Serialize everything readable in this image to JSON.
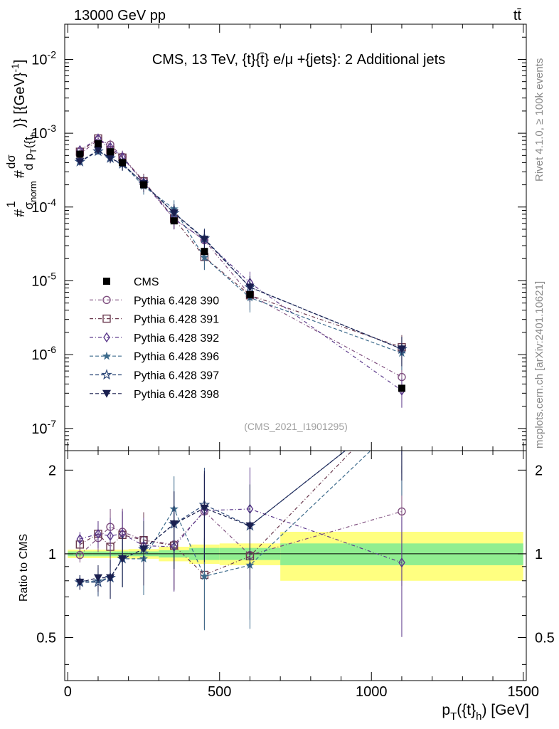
{
  "header": {
    "beam_label": "13000 GeV pp",
    "process_label": "tt̄"
  },
  "side_labels": {
    "rivet": "Rivet 4.1.0, ≥ 100k events",
    "mcplots": "mcplots.cern.ch [arXiv:2401.10621]"
  },
  "chart_data": {
    "type": "line",
    "title": "CMS, 13 TeV, {t}{t̄} e/μ +{jets}: 2 Additional jets",
    "analysis_tag": "(CMS_2021_I1901295)",
    "xlabel_main": "p",
    "xlabel_sub": "T",
    "xlabel_rest": "({t}",
    "xlabel_sub2": "h",
    "xlabel_end": ") [GeV]",
    "ylabel": "#1/σnorm #dσ/dpT({t}h)} [{GeV}-1]",
    "ylabel_parts": {
      "hash1": "#",
      "one": "1",
      "sigma": "σ",
      "norm": "norm",
      "hash2": "#",
      "dsig": "dσ",
      "dp": "d p",
      "dpsub": "T",
      "paren": "({t",
      "hsub": "h",
      "close": ")} [{GeV}",
      "exp": "-1",
      "end": "]"
    },
    "ratio_ylabel": "Ratio to CMS",
    "xlim": [
      -10,
      1510
    ],
    "ylim": [
      5e-08,
      0.03
    ],
    "ratio_ylim": [
      0.35,
      2.35
    ],
    "x_ticks": [
      0,
      500,
      1000,
      1500
    ],
    "x_tick_labels": [
      "0",
      "500",
      "1000",
      "1500"
    ],
    "y_ticks": [
      1e-07,
      1e-06,
      1e-05,
      0.0001,
      0.001,
      0.01
    ],
    "y_tick_labels": [
      {
        "base": "10",
        "exp": "-7"
      },
      {
        "base": "10",
        "exp": "-6"
      },
      {
        "base": "10",
        "exp": "-5"
      },
      {
        "base": "10",
        "exp": "-4"
      },
      {
        "base": "10",
        "exp": "-3"
      },
      {
        "base": "10",
        "exp": "-2"
      }
    ],
    "ratio_ticks": [
      0.5,
      1,
      2
    ],
    "ratio_tick_labels": [
      "0.5",
      "1",
      "2"
    ],
    "bin_edges": [
      0,
      80,
      120,
      160,
      200,
      300,
      400,
      500,
      700,
      1500
    ],
    "x": [
      40,
      100,
      140,
      180,
      250,
      350,
      450,
      600,
      1100
    ],
    "data": {
      "name": "CMS",
      "values": [
        0.00052,
        0.00072,
        0.00056,
        0.0004,
        0.0002,
        6.5e-05,
        2.5e-05,
        6.5e-06,
        3.5e-07
      ],
      "stat_band": [
        0.02,
        0.02,
        0.02,
        0.02,
        0.02,
        0.03,
        0.05,
        0.05,
        0.09
      ],
      "total_band": [
        0.035,
        0.035,
        0.035,
        0.035,
        0.04,
        0.06,
        0.08,
        0.09,
        0.2
      ]
    },
    "series": [
      {
        "name": "Pythia 6.428 390",
        "marker": "open-circle",
        "color": "#7f4f7f",
        "dash": "5,3,1,3",
        "ratio": [
          0.99,
          1.14,
          1.25,
          1.2,
          1.12,
          1.08,
          1.42,
          0.99,
          1.42
        ]
      },
      {
        "name": "Pythia 6.428 391",
        "marker": "open-square",
        "color": "#6b3a4f",
        "dash": "5,3,1,3",
        "ratio": [
          1.08,
          1.18,
          1.06,
          1.17,
          1.12,
          1.07,
          0.84,
          0.98,
          3.6
        ]
      },
      {
        "name": "Pythia 6.428 392",
        "marker": "open-diamond",
        "color": "#5c3a8c",
        "dash": "5,3,1,3",
        "ratio": [
          1.13,
          1.18,
          1.16,
          1.18,
          1.07,
          1.06,
          1.43,
          1.45,
          0.93
        ]
      },
      {
        "name": "Pythia 6.428 396",
        "marker": "star",
        "color": "#3d6b8c",
        "dash": "5,3",
        "ratio": [
          0.79,
          0.8,
          0.82,
          0.96,
          0.96,
          1.45,
          0.83,
          0.91,
          3.0
        ]
      },
      {
        "name": "Pythia 6.428 397",
        "marker": "open-star",
        "color": "#2f4a7a",
        "dash": "5,3",
        "ratio": [
          0.79,
          0.79,
          0.82,
          0.96,
          1.04,
          1.28,
          1.5,
          1.26,
          3.4
        ]
      },
      {
        "name": "Pythia 6.428 398",
        "marker": "down-triangle",
        "color": "#1a1f4f",
        "dash": "5,3",
        "ratio": [
          0.79,
          0.82,
          0.82,
          0.96,
          1.04,
          1.28,
          1.46,
          1.26,
          3.4
        ]
      }
    ],
    "legend_position": "middle-left",
    "grid": false
  }
}
